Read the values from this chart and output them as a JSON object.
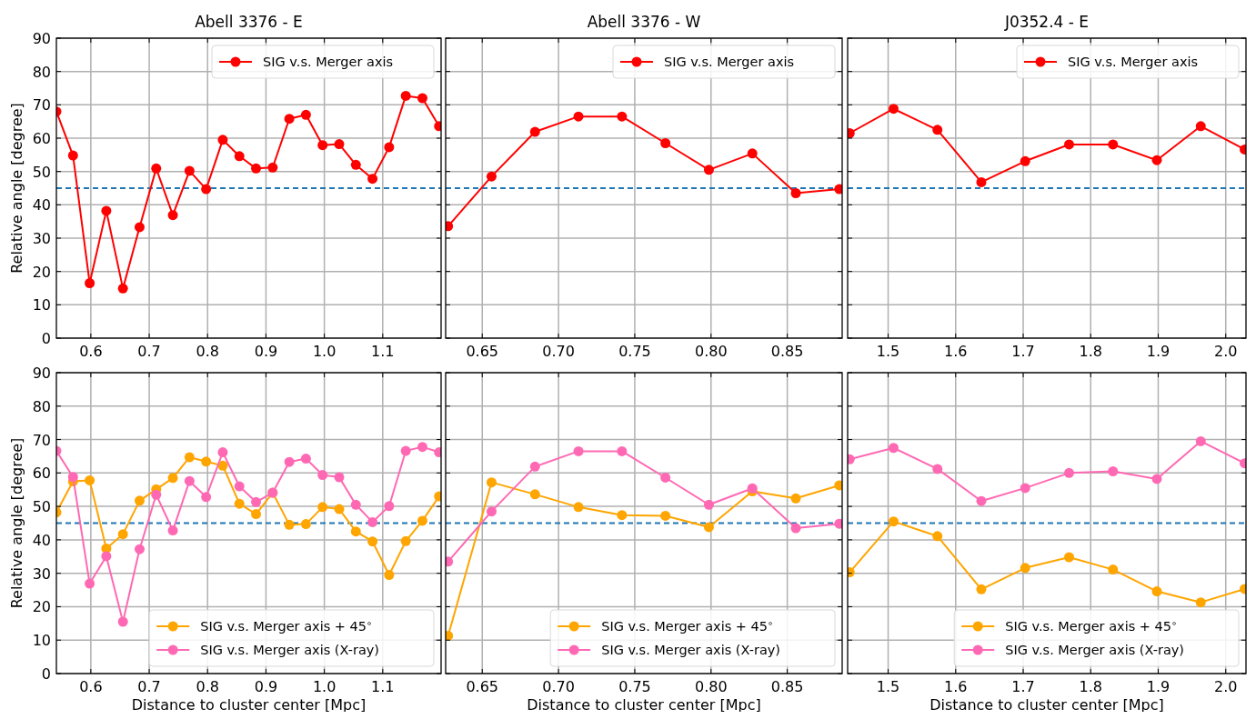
{
  "chart_data": [
    {
      "type": "line",
      "title": "Abell 3376 - E",
      "ylabel": "Relative angle [degree]",
      "xlim": [
        0.541,
        1.2
      ],
      "xticks": [
        0.6,
        0.7,
        0.8,
        0.9,
        {
          "value": 1,
          "label": "1.0"
        },
        1.1
      ],
      "ylim": [
        0,
        90
      ],
      "yticks": [
        0,
        10,
        20,
        30,
        40,
        50,
        60,
        70,
        80,
        90
      ],
      "grid": true,
      "legend": "top right",
      "marker": "circle",
      "line_style": "solid",
      "x": [
        0.541,
        0.5695,
        0.598,
        0.6265,
        0.655,
        0.6835,
        0.712,
        0.7405,
        0.769,
        0.7975,
        0.826,
        0.8545,
        0.883,
        0.9115,
        0.94,
        0.9685,
        0.997,
        1.0255,
        1.054,
        1.0825,
        1.111,
        1.1395,
        1.168,
        1.1965
      ],
      "series": [
        {
          "name": "SIG v.s. Merger axis",
          "color": "#ff0000",
          "values": [
            68.0,
            54.8,
            16.5,
            38.2,
            14.9,
            33.3,
            50.9,
            36.9,
            50.2,
            44.7,
            59.5,
            54.6,
            50.9,
            51.2,
            65.8,
            67.0,
            57.9,
            58.2,
            52.0,
            47.8,
            57.3,
            72.7,
            72.0,
            63.6
          ]
        }
      ],
      "ref_lines": [
        {
          "axis": "y",
          "value": 45,
          "color": "#1f77b4",
          "line_style": "dashed"
        }
      ]
    },
    {
      "type": "line",
      "title": "Abell 3376 - W",
      "xlim": [
        0.626,
        0.886
      ],
      "xticks": [
        0.65,
        {
          "value": 0.7,
          "label": "0.70"
        },
        0.75,
        {
          "value": 0.8,
          "label": "0.80"
        },
        0.85
      ],
      "ylim": [
        0,
        90
      ],
      "yticks": [
        0,
        10,
        20,
        30,
        40,
        50,
        60,
        70,
        80,
        90
      ],
      "tick_labels": "x",
      "grid": true,
      "legend": "top right",
      "marker": "circle",
      "line_style": "solid",
      "x": [
        0.6276,
        0.6561,
        0.6846,
        0.7131,
        0.7416,
        0.7701,
        0.7986,
        0.8271,
        0.8556,
        0.8841
      ],
      "series": [
        {
          "name": "SIG v.s. Merger axis",
          "color": "#ff0000",
          "values": [
            33.6,
            48.5,
            61.9,
            66.5,
            66.5,
            58.5,
            50.5,
            55.4,
            43.5,
            44.7
          ]
        }
      ],
      "ref_lines": [
        {
          "axis": "y",
          "value": 45,
          "color": "#1f77b4",
          "line_style": "dashed"
        }
      ]
    },
    {
      "type": "line",
      "title": "J0352.4 - E",
      "xlim": [
        1.44,
        2.03
      ],
      "xticks": [
        1.5,
        1.6,
        1.7,
        1.8,
        1.9,
        {
          "value": 2,
          "label": "2.0"
        }
      ],
      "ylim": [
        0,
        90
      ],
      "yticks": [
        0,
        10,
        20,
        30,
        40,
        50,
        60,
        70,
        80,
        90
      ],
      "tick_labels": "x",
      "grid": true,
      "legend": "top right",
      "marker": "circle",
      "line_style": "solid",
      "x": [
        1.443,
        1.508,
        1.573,
        1.638,
        1.703,
        1.768,
        1.833,
        1.898,
        1.963,
        2.028
      ],
      "series": [
        {
          "name": "SIG v.s. Merger axis",
          "color": "#ff0000",
          "values": [
            61.5,
            68.8,
            62.5,
            46.8,
            53.1,
            58.1,
            58.1,
            53.4,
            63.6,
            56.6
          ]
        }
      ],
      "ref_lines": [
        {
          "axis": "y",
          "value": 45,
          "color": "#1f77b4",
          "line_style": "dashed"
        }
      ]
    },
    {
      "type": "line",
      "xlabel": "Distance to cluster center [Mpc]",
      "ylabel": "Relative angle [degree]",
      "xlim": [
        0.541,
        1.2
      ],
      "xticks": [
        0.6,
        0.7,
        0.8,
        0.9,
        {
          "value": 1,
          "label": "1.0"
        },
        1.1
      ],
      "ylim": [
        0,
        90
      ],
      "yticks": [
        0,
        10,
        20,
        30,
        40,
        50,
        60,
        70,
        80,
        90
      ],
      "grid": true,
      "legend": "bottom right",
      "marker": "circle",
      "line_style": "solid",
      "x": [
        0.541,
        0.5695,
        0.598,
        0.6265,
        0.655,
        0.6835,
        0.712,
        0.7405,
        0.769,
        0.7975,
        0.826,
        0.8545,
        0.883,
        0.9115,
        0.94,
        0.9685,
        0.997,
        1.0255,
        1.054,
        1.0825,
        1.111,
        1.1395,
        1.168,
        1.1965
      ],
      "series": [
        {
          "name": "SIG v.s. Merger axis + 45$^{∘}$",
          "color": "#ffa500",
          "values": [
            48.2,
            57.5,
            57.8,
            37.4,
            41.7,
            51.7,
            55.1,
            58.5,
            64.7,
            63.4,
            62.2,
            50.8,
            47.7,
            54.1,
            44.5,
            44.7,
            49.8,
            49.2,
            42.5,
            39.5,
            29.5,
            39.6,
            45.7,
            53.0
          ]
        },
        {
          "name": "SIG v.s. Merger axis (X-ray)",
          "color": "#ff69b4",
          "values": [
            66.6,
            58.8,
            26.9,
            35.1,
            15.5,
            37.2,
            53.5,
            42.8,
            57.6,
            52.8,
            66.2,
            56.0,
            51.3,
            54.1,
            63.3,
            64.3,
            59.4,
            58.7,
            50.5,
            45.3,
            50.1,
            66.6,
            67.8,
            66.2
          ]
        }
      ],
      "ref_lines": [
        {
          "axis": "y",
          "value": 45,
          "color": "#1f77b4",
          "line_style": "dashed"
        }
      ]
    },
    {
      "type": "line",
      "xlabel": "Distance to cluster center [Mpc]",
      "xlim": [
        0.626,
        0.886
      ],
      "xticks": [
        0.65,
        {
          "value": 0.7,
          "label": "0.70"
        },
        0.75,
        {
          "value": 0.8,
          "label": "0.80"
        },
        0.85
      ],
      "ylim": [
        0,
        90
      ],
      "yticks": [
        0,
        10,
        20,
        30,
        40,
        50,
        60,
        70,
        80,
        90
      ],
      "tick_labels": "x",
      "grid": true,
      "legend": "bottom right",
      "marker": "circle",
      "line_style": "solid",
      "x": [
        0.6276,
        0.6561,
        0.6846,
        0.7131,
        0.7416,
        0.7701,
        0.7986,
        0.8271,
        0.8556,
        0.8841
      ],
      "series": [
        {
          "name": "SIG v.s. Merger axis + 45$^{∘}$",
          "color": "#ffa500",
          "values": [
            11.3,
            57.2,
            53.6,
            49.8,
            47.4,
            47.2,
            43.8,
            54.5,
            52.4,
            56.3
          ]
        },
        {
          "name": "SIG v.s. Merger axis (X-ray)",
          "color": "#ff69b4",
          "values": [
            33.5,
            48.5,
            61.9,
            66.5,
            66.5,
            58.6,
            50.5,
            55.4,
            43.5,
            44.8
          ]
        }
      ],
      "ref_lines": [
        {
          "axis": "y",
          "value": 45,
          "color": "#1f77b4",
          "line_style": "dashed"
        }
      ]
    },
    {
      "type": "line",
      "xlabel": "Distance to cluster center [Mpc]",
      "xlim": [
        1.44,
        2.03
      ],
      "xticks": [
        1.5,
        1.6,
        1.7,
        1.8,
        1.9,
        {
          "value": 2,
          "label": "2.0"
        }
      ],
      "ylim": [
        0,
        90
      ],
      "yticks": [
        0,
        10,
        20,
        30,
        40,
        50,
        60,
        70,
        80,
        90
      ],
      "tick_labels": "x",
      "grid": true,
      "legend": "bottom right",
      "marker": "circle",
      "line_style": "solid",
      "x": [
        1.443,
        1.508,
        1.573,
        1.638,
        1.703,
        1.768,
        1.833,
        1.898,
        1.963,
        2.028
      ],
      "series": [
        {
          "name": "SIG v.s. Merger axis + 45$^{∘}$",
          "color": "#ffa500",
          "values": [
            30.3,
            45.5,
            41.1,
            25.2,
            31.6,
            34.8,
            31.1,
            24.6,
            21.3,
            25.3
          ]
        },
        {
          "name": "SIG v.s. Merger axis (X-ray)",
          "color": "#ff69b4",
          "values": [
            64.1,
            67.5,
            61.2,
            51.6,
            55.5,
            60.0,
            60.5,
            58.2,
            69.5,
            62.9
          ]
        }
      ],
      "ref_lines": [
        {
          "axis": "y",
          "value": 45,
          "color": "#1f77b4",
          "line_style": "dashed"
        }
      ]
    }
  ]
}
